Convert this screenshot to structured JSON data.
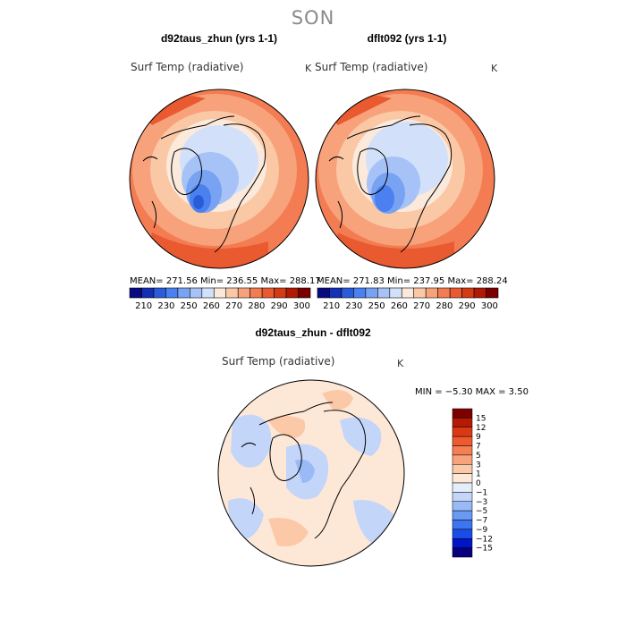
{
  "season": "SON",
  "diff_scale": {
    "colors": [
      "#08007e",
      "#0014c8",
      "#1a4ce6",
      "#3d74f0",
      "#6b9af5",
      "#9ab9f7",
      "#c3d5f8",
      "#e4eefb",
      "#fde8d7",
      "#fbc9a7",
      "#f8a37b",
      "#f57e52",
      "#ee5a2f",
      "#d93a15",
      "#b51a05",
      "#7d0000"
    ],
    "labels": [
      "15",
      "12",
      "9",
      "7",
      "5",
      "3",
      "1",
      "0",
      "−1",
      "−3",
      "−5",
      "−7",
      "−9",
      "−12",
      "−15"
    ]
  },
  "panels": [
    {
      "title": "d92taus_zhun (yrs 1-1)",
      "field": "Surf Temp (radiative)",
      "unit": "K",
      "stats": "MEAN= 271.56   Min= 236.55   Max= 288.17",
      "colorbar": {
        "colors": [
          "#0a0a80",
          "#1430b4",
          "#2a5cd9",
          "#4a80ef",
          "#78a2f2",
          "#a7c2f6",
          "#d2e1f9",
          "#fbe9dc",
          "#fbc8a6",
          "#f8a27b",
          "#f37c52",
          "#ea5a30",
          "#d43a15",
          "#b01a05",
          "#7a0000"
        ],
        "tick_labels": [
          "210",
          "230",
          "250",
          "260",
          "270",
          "280",
          "290",
          "300"
        ]
      }
    },
    {
      "title": "dflt092 (yrs 1-1)",
      "field": "Surf Temp (radiative)",
      "unit": "K",
      "stats": "MEAN= 271.83   Min= 237.95   Max= 288.24",
      "colorbar": {
        "colors": [
          "#0a0a80",
          "#1430b4",
          "#2a5cd9",
          "#4a80ef",
          "#78a2f2",
          "#a7c2f6",
          "#d2e1f9",
          "#fbe9dc",
          "#fbc8a6",
          "#f8a27b",
          "#f37c52",
          "#ea5a30",
          "#d43a15",
          "#b01a05",
          "#7a0000"
        ],
        "tick_labels": [
          "210",
          "230",
          "250",
          "260",
          "270",
          "280",
          "290",
          "300"
        ]
      }
    },
    {
      "title": "d92taus_zhun - dflt092",
      "field": "Surf Temp (radiative)",
      "unit": "K",
      "stats": "MIN =  −5.30  MAX =    3.50"
    }
  ],
  "chart_data": [
    {
      "type": "heatmap",
      "title": "d92taus_zhun (yrs 1-1)",
      "variable": "Surf Temp (radiative)",
      "units": "K",
      "mean": 271.56,
      "min": 236.55,
      "max": 288.17,
      "colorbar_ticks": [
        210,
        230,
        250,
        260,
        270,
        280,
        290,
        300
      ]
    },
    {
      "type": "heatmap",
      "title": "dflt092 (yrs 1-1)",
      "variable": "Surf Temp (radiative)",
      "units": "K",
      "mean": 271.83,
      "min": 237.95,
      "max": 288.24,
      "colorbar_ticks": [
        210,
        230,
        250,
        260,
        270,
        280,
        290,
        300
      ]
    },
    {
      "type": "heatmap",
      "title": "d92taus_zhun - dflt092",
      "variable": "Surf Temp (radiative)",
      "units": "K",
      "min": -5.3,
      "max": 3.5,
      "colorbar_ticks": [
        -15,
        -12,
        -9,
        -7,
        -5,
        -3,
        -1,
        0,
        1,
        3,
        5,
        7,
        9,
        12,
        15
      ]
    }
  ]
}
